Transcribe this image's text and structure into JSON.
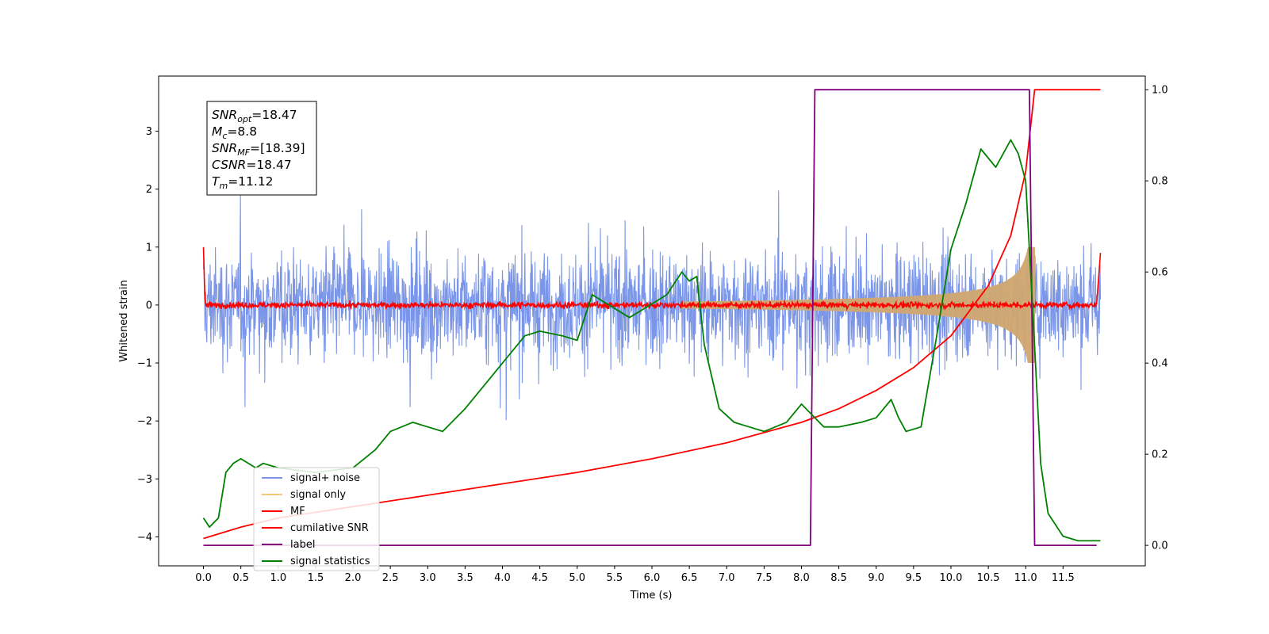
{
  "chart_data": {
    "type": "line",
    "title": "",
    "xlabel": "Time (s)",
    "ylabel": "Whitened strain",
    "xlim": [
      -0.6,
      12.6
    ],
    "ylim_left": [
      -4.5,
      3.95
    ],
    "ylim_right": [
      -0.045,
      1.03
    ],
    "x_ticks": [
      "0.0",
      "0.5",
      "1.0",
      "1.5",
      "2.0",
      "2.5",
      "3.0",
      "3.5",
      "4.0",
      "4.5",
      "5.0",
      "5.5",
      "6.0",
      "6.5",
      "7.0",
      "7.5",
      "8.0",
      "8.5",
      "9.0",
      "9.5",
      "10.0",
      "10.5",
      "11.0",
      "11.5"
    ],
    "y_ticks_left": [
      "3",
      "2",
      "1",
      "0",
      "−1",
      "−2",
      "−3",
      "−4"
    ],
    "y_ticks_right": [
      "1.0",
      "0.8",
      "0.6",
      "0.4",
      "0.2",
      "0.0"
    ],
    "grid": false,
    "legend_position": "lower-left",
    "info_box": {
      "lines": [
        {
          "name": "SNR",
          "sub": "opt",
          "value": "=18.47"
        },
        {
          "name": "M",
          "sub": "c",
          "value": "=8.8"
        },
        {
          "name": "SNR",
          "sub": "MF",
          "value": "=[18.39]"
        },
        {
          "name": "CSNR",
          "sub": "",
          "value": "=18.47"
        },
        {
          "name": "T",
          "sub": "m",
          "value": "=11.12"
        }
      ]
    },
    "series": [
      {
        "name": "signal+ noise",
        "color": "#7b96e8",
        "axis": "left",
        "description": "noise-like, amplitude about ±2 (peaks ~3.6 / -4.1), from 0 to 12"
      },
      {
        "name": "signal only",
        "color": "#f5c87a",
        "axis": "left",
        "description": "chirp envelope starting ~6.6 growing to ±1.0 at 11.1"
      },
      {
        "name": "MF",
        "color": "#ff0000",
        "axis": "left",
        "description": "matched filter output near 0"
      },
      {
        "name": "cumilative SNR",
        "color": "#ff0000",
        "axis": "right",
        "x": [
          0.0,
          0.5,
          1.0,
          2.0,
          3.0,
          4.0,
          5.0,
          6.0,
          7.0,
          8.0,
          8.5,
          9.0,
          9.5,
          10.0,
          10.5,
          10.8,
          11.0,
          11.12,
          12.0
        ],
        "values": [
          0.015,
          0.04,
          0.06,
          0.085,
          0.11,
          0.135,
          0.16,
          0.19,
          0.225,
          0.27,
          0.3,
          0.34,
          0.39,
          0.46,
          0.57,
          0.68,
          0.82,
          1.0,
          1.0
        ]
      },
      {
        "name": "label",
        "color": "#800080",
        "axis": "right",
        "x": [
          0.0,
          8.12,
          8.18,
          11.05,
          11.12,
          11.95
        ],
        "values": [
          0.0,
          0.0,
          1.0,
          1.0,
          0.0,
          0.0
        ]
      },
      {
        "name": "signal statistics",
        "color": "#008000",
        "axis": "right",
        "x": [
          0.0,
          0.08,
          0.2,
          0.3,
          0.4,
          0.5,
          0.7,
          0.8,
          1.0,
          1.5,
          2.0,
          2.3,
          2.5,
          2.8,
          3.0,
          3.2,
          3.5,
          3.8,
          4.0,
          4.3,
          4.5,
          4.8,
          5.0,
          5.2,
          5.5,
          5.7,
          6.0,
          6.2,
          6.4,
          6.5,
          6.6,
          6.7,
          6.9,
          7.1,
          7.3,
          7.5,
          7.8,
          8.0,
          8.3,
          8.5,
          8.8,
          9.0,
          9.2,
          9.3,
          9.4,
          9.6,
          9.8,
          10.0,
          10.2,
          10.4,
          10.6,
          10.8,
          10.9,
          11.0,
          11.1,
          11.2,
          11.3,
          11.5,
          11.7,
          12.0
        ],
        "values": [
          0.06,
          0.04,
          0.06,
          0.16,
          0.18,
          0.19,
          0.17,
          0.18,
          0.17,
          0.16,
          0.17,
          0.21,
          0.25,
          0.27,
          0.26,
          0.25,
          0.3,
          0.36,
          0.4,
          0.46,
          0.47,
          0.46,
          0.45,
          0.55,
          0.52,
          0.5,
          0.53,
          0.55,
          0.6,
          0.58,
          0.59,
          0.44,
          0.3,
          0.27,
          0.26,
          0.25,
          0.27,
          0.31,
          0.26,
          0.26,
          0.27,
          0.28,
          0.32,
          0.28,
          0.25,
          0.26,
          0.45,
          0.65,
          0.75,
          0.87,
          0.83,
          0.89,
          0.86,
          0.8,
          0.5,
          0.18,
          0.07,
          0.02,
          0.01,
          0.01
        ]
      }
    ]
  }
}
